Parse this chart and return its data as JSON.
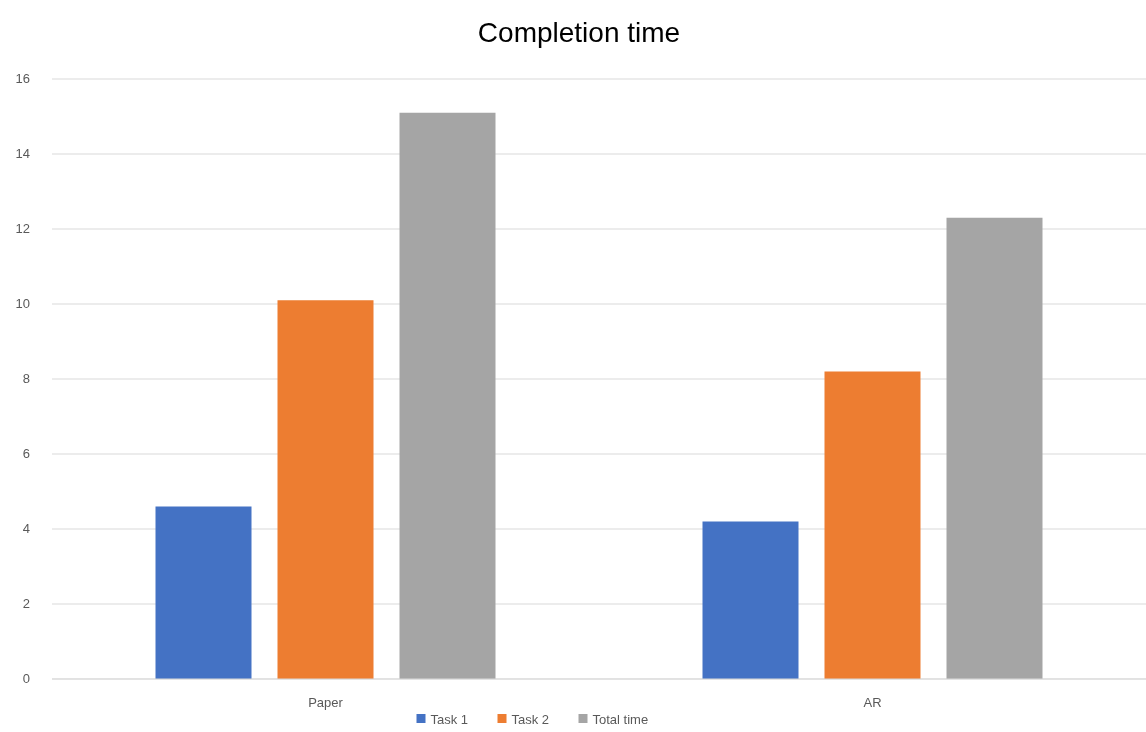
{
  "chart_data": {
    "type": "bar",
    "title": "Completion time",
    "categories": [
      "Paper",
      "AR"
    ],
    "series": [
      {
        "name": "Task 1",
        "color": "#4472c4",
        "values": [
          4.6,
          4.2
        ]
      },
      {
        "name": "Task 2",
        "color": "#ed7d31",
        "values": [
          10.1,
          8.2
        ]
      },
      {
        "name": "Total time",
        "color": "#a5a5a5",
        "values": [
          15.1,
          12.3
        ]
      }
    ],
    "ylim": [
      0,
      16
    ],
    "yticks": [
      0,
      2,
      4,
      6,
      8,
      10,
      12,
      14,
      16
    ],
    "grid": "y",
    "legend": "bottom"
  }
}
